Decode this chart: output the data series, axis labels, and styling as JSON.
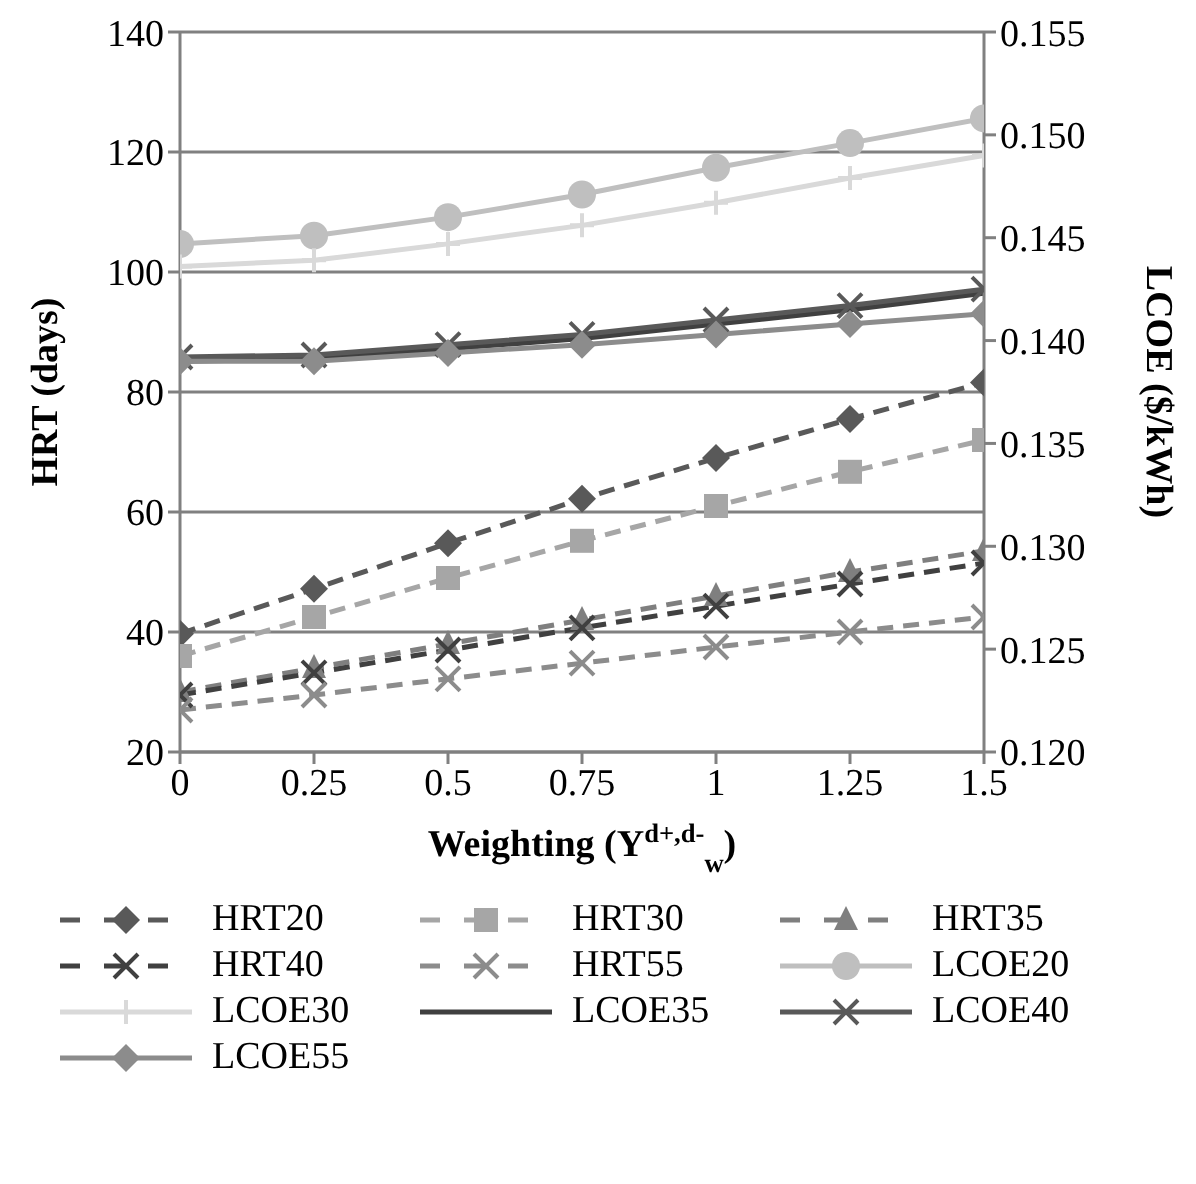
{
  "chart_data": {
    "type": "line",
    "xlabel": "Weighting (Y$^{d+,d-}$$_{w}$)",
    "ylabel": "HRT (days)",
    "y2label": "LCOE ($/kWh)",
    "x": [
      0,
      0.25,
      0.5,
      0.75,
      1,
      1.25,
      1.5
    ],
    "xlim": [
      0,
      1.5
    ],
    "xticks": [
      0,
      0.25,
      0.5,
      0.75,
      1,
      1.25,
      1.5
    ],
    "ylim": [
      20,
      140
    ],
    "yticks": [
      20,
      40,
      60,
      80,
      100,
      120,
      140
    ],
    "y2lim": [
      0.12,
      0.155
    ],
    "y2ticks": [
      {
        "value": 0.12,
        "label": "0.120"
      },
      0.125,
      {
        "value": 0.13,
        "label": "0.130"
      },
      0.135,
      {
        "value": 0.14,
        "label": "0.140"
      },
      0.145,
      {
        "value": 0.15,
        "label": "0.150"
      },
      0.155
    ],
    "grid": "y",
    "legend": "bottom",
    "series": [
      {
        "name": "HRT20",
        "color": "#595959",
        "marker": "diamond",
        "line_style": "dashed",
        "values": [
          39.7,
          47.2,
          54.8,
          62.2,
          69,
          75.5,
          81.6
        ]
      },
      {
        "name": "HRT30",
        "color": "#a6a6a6",
        "marker": "square",
        "line_style": "dashed",
        "values": [
          36,
          42.5,
          49,
          55.2,
          61,
          66.7,
          72
        ]
      },
      {
        "name": "HRT35",
        "color": "#7f7f7f",
        "marker": "triangle",
        "line_style": "dashed",
        "values": [
          30,
          34,
          38,
          42,
          46,
          50,
          53.5
        ]
      },
      {
        "name": "HRT40",
        "color": "#404040",
        "marker": "cross",
        "line_style": "dashed",
        "values": [
          29.5,
          33.2,
          37,
          40.7,
          44.3,
          48,
          51.5
        ]
      },
      {
        "name": "HRT55",
        "color": "#8c8c8c",
        "marker": "cross",
        "line_style": "dashed",
        "values": [
          27,
          29.5,
          32.2,
          34.8,
          37.5,
          40,
          42.5
        ]
      },
      {
        "name": "LCOE20",
        "color": "#bfbfbf",
        "marker": "circle",
        "line_style": "solid",
        "axis": "y2",
        "values": [
          0.1447,
          0.1451,
          0.146,
          0.1471,
          0.1484,
          0.1496,
          0.1508
        ]
      },
      {
        "name": "LCOE30",
        "color": "#d9d9d9",
        "marker": "plus",
        "line_style": "solid",
        "axis": "y2",
        "values": [
          0.1436,
          0.1439,
          0.1447,
          0.1456,
          0.1467,
          0.1479,
          0.149
        ]
      },
      {
        "name": "LCOE35",
        "color": "#404040",
        "marker": "none",
        "line_style": "solid",
        "axis": "y2",
        "values": [
          0.139,
          0.1391,
          0.1396,
          0.1401,
          0.1408,
          0.1415,
          0.1423
        ]
      },
      {
        "name": "LCOE40",
        "color": "#595959",
        "marker": "cross",
        "line_style": "solid",
        "axis": "y2",
        "values": [
          0.1392,
          0.1393,
          0.1398,
          0.1403,
          0.141,
          0.1417,
          0.1425
        ]
      },
      {
        "name": "LCOE55",
        "color": "#8c8c8c",
        "marker": "diamond",
        "line_style": "solid",
        "axis": "y2",
        "values": [
          0.139,
          0.139,
          0.1394,
          0.1398,
          0.1403,
          0.1408,
          0.1413
        ]
      }
    ]
  }
}
